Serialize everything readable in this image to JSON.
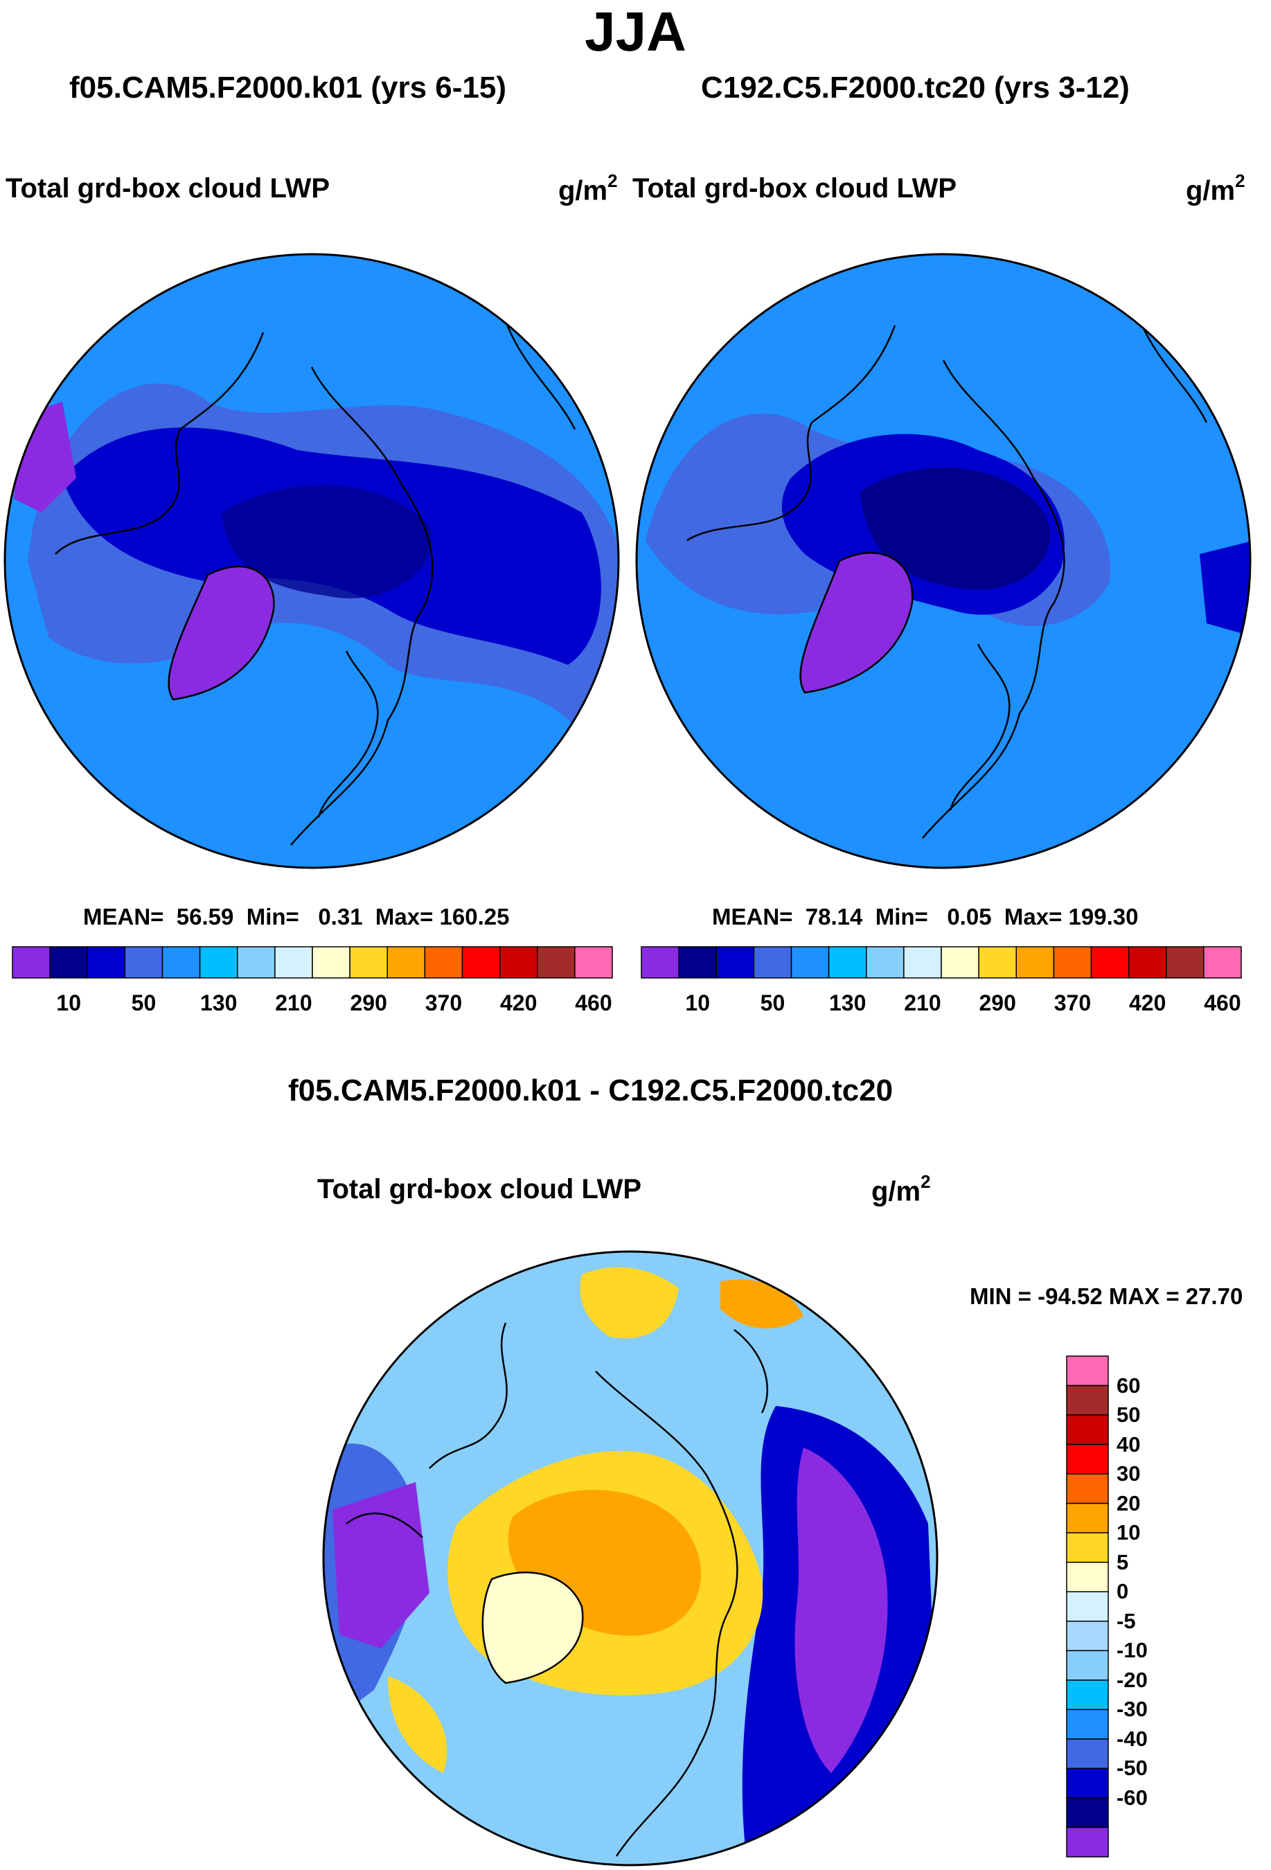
{
  "page_title": "JJA",
  "chart_data": [
    {
      "type": "heatmap",
      "projection": "north-polar-stereographic",
      "subtitle": "f05.CAM5.F2000.k01 (yrs 6-15)",
      "title": "Total grd-box cloud LWP",
      "units": "g/m2",
      "units_base": "g/m",
      "units_exp": "2",
      "stats": {
        "mean_label": "MEAN=",
        "mean": "56.59",
        "min_label": "Min=",
        "min": "0.31",
        "max_label": "Max=",
        "max": "160.25"
      },
      "colorbar": {
        "orientation": "horizontal",
        "colors": [
          "#8a2be2",
          "#00008b",
          "#0000cd",
          "#4169e1",
          "#1e90ff",
          "#00bfff",
          "#87cefa",
          "#d4f1ff",
          "#ffffd0",
          "#ffd727",
          "#ffa500",
          "#ff6600",
          "#ff0000",
          "#cc0000",
          "#a52a2a",
          "#ff69b4"
        ],
        "tick_labels": [
          "10",
          "50",
          "130",
          "210",
          "290",
          "370",
          "420",
          "460"
        ]
      }
    },
    {
      "type": "heatmap",
      "projection": "north-polar-stereographic",
      "subtitle": "C192.C5.F2000.tc20 (yrs 3-12)",
      "title": "Total grd-box cloud LWP",
      "units": "g/m2",
      "units_base": "g/m",
      "units_exp": "2",
      "stats": {
        "mean_label": "MEAN=",
        "mean": "78.14",
        "min_label": "Min=",
        "min": "0.05",
        "max_label": "Max=",
        "max": "199.30"
      },
      "colorbar": {
        "orientation": "horizontal",
        "colors": [
          "#8a2be2",
          "#00008b",
          "#0000cd",
          "#4169e1",
          "#1e90ff",
          "#00bfff",
          "#87cefa",
          "#d4f1ff",
          "#ffffd0",
          "#ffd727",
          "#ffa500",
          "#ff6600",
          "#ff0000",
          "#cc0000",
          "#a52a2a",
          "#ff69b4"
        ],
        "tick_labels": [
          "10",
          "50",
          "130",
          "210",
          "290",
          "370",
          "420",
          "460"
        ]
      }
    },
    {
      "type": "heatmap",
      "projection": "north-polar-stereographic",
      "subtitle": "f05.CAM5.F2000.k01 - C192.C5.F2000.tc20",
      "title": "Total grd-box cloud LWP",
      "units": "g/m2",
      "units_base": "g/m",
      "units_exp": "2",
      "range_text": "MIN = -94.52 MAX =  27.70",
      "colorbar": {
        "orientation": "vertical",
        "colors_top_to_bottom": [
          "#ff69b4",
          "#a52a2a",
          "#cc0000",
          "#ff0000",
          "#ff6600",
          "#ffa500",
          "#ffd727",
          "#ffffd0",
          "#d4f1ff",
          "#a8d8ff",
          "#87cefa",
          "#00bfff",
          "#1e90ff",
          "#4169e1",
          "#0000cd",
          "#00008b",
          "#8a2be2"
        ],
        "tick_labels_top_to_bottom": [
          "60",
          "50",
          "40",
          "30",
          "20",
          "10",
          "5",
          "0",
          "-5",
          "-10",
          "-20",
          "-30",
          "-40",
          "-50",
          "-60"
        ]
      }
    }
  ],
  "colors": {
    "land_outline": "#000000",
    "background": "#ffffff"
  }
}
